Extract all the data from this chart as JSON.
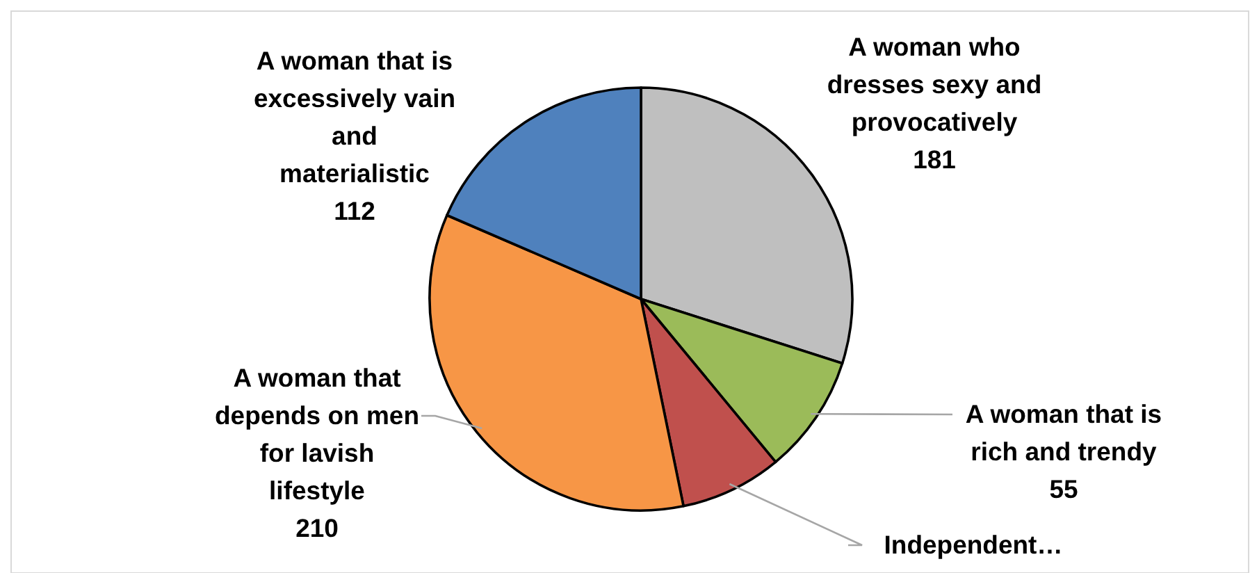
{
  "chart_data": {
    "type": "pie",
    "categories": [
      "A woman who dresses sexy and provocatively",
      "A woman that is rich and trendy",
      "Independent…",
      "A woman that depends on men for lavish lifestyle",
      "A woman that is excessively vain and materialistic"
    ],
    "values": [
      181,
      55,
      47,
      210,
      112
    ],
    "value_labels": [
      "181",
      "55",
      null,
      "210",
      "112"
    ],
    "colors": [
      "#bfbfbf",
      "#9bbb59",
      "#c0504d",
      "#f79646",
      "#4f81bd"
    ]
  }
}
